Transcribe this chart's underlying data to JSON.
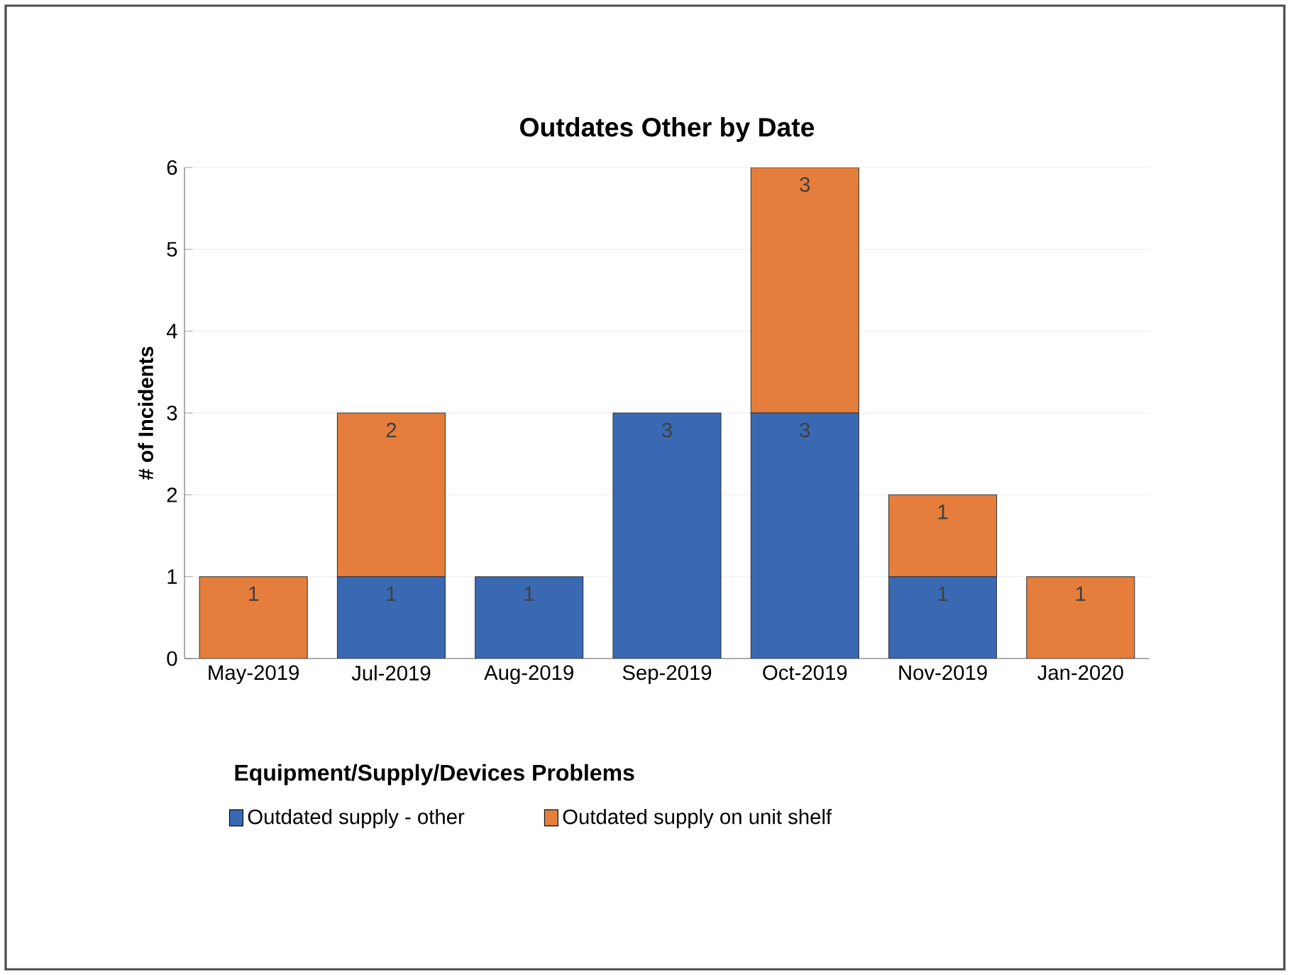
{
  "chart_data": {
    "type": "bar",
    "title": "Outdates Other by Date",
    "ylabel": "# of Incidents",
    "legend_title": "Equipment/Supply/Devices Problems",
    "categories": [
      "May-2019",
      "Jul-2019",
      "Aug-2019",
      "Sep-2019",
      "Oct-2019",
      "Nov-2019",
      "Jan-2020"
    ],
    "stacked": true,
    "series": [
      {
        "name": "Outdated supply - other",
        "color": "#3a69b4",
        "values": [
          0,
          1,
          1,
          3,
          3,
          1,
          0
        ],
        "value_labels": [
          null,
          "1",
          "1",
          "3",
          "3",
          "1",
          null
        ]
      },
      {
        "name": "Outdated supply on unit shelf",
        "color": "#e57e3c",
        "values": [
          1,
          2,
          0,
          0,
          3,
          1,
          1
        ],
        "value_labels": [
          "1",
          "2",
          null,
          null,
          "3",
          "1",
          "1"
        ]
      }
    ],
    "ylim": [
      0,
      6
    ],
    "yticks": [
      0,
      1,
      2,
      3,
      4,
      5,
      6
    ],
    "grid": "y",
    "legend": "bottom"
  }
}
